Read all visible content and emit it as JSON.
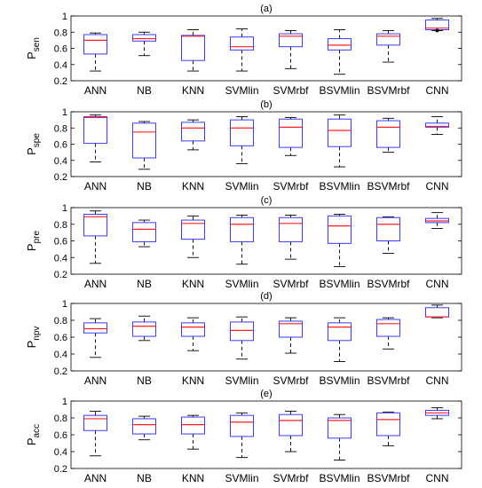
{
  "colors": {
    "box": "#3a3aff",
    "median": "#ff2020",
    "whisker": "#000000",
    "axis": "#000000",
    "outlier_fill": "#000000"
  },
  "chart_data": [
    {
      "type": "box",
      "title": "(a)",
      "ylabel_main": "P",
      "ylabel_sub": "sen",
      "ylim": [
        0.2,
        1.0
      ],
      "yticks": [
        "0.2",
        "0.4",
        "0.6",
        "0.8",
        "1"
      ],
      "categories": [
        "ANN",
        "NB",
        "KNN",
        "SVMlin",
        "SVMrbf",
        "BSVMlin",
        "BSVMrbf",
        "CNN"
      ],
      "boxes": [
        {
          "min": 0.32,
          "q1": 0.53,
          "median": 0.7,
          "q3": 0.77,
          "max": 0.79
        },
        {
          "min": 0.51,
          "q1": 0.69,
          "median": 0.72,
          "q3": 0.77,
          "max": 0.8
        },
        {
          "min": 0.32,
          "q1": 0.45,
          "median": 0.75,
          "q3": 0.76,
          "max": 0.83
        },
        {
          "min": 0.32,
          "q1": 0.58,
          "median": 0.62,
          "q3": 0.74,
          "max": 0.84
        },
        {
          "min": 0.35,
          "q1": 0.62,
          "median": 0.75,
          "q3": 0.78,
          "max": 0.82
        },
        {
          "min": 0.28,
          "q1": 0.58,
          "median": 0.64,
          "q3": 0.72,
          "max": 0.83
        },
        {
          "min": 0.43,
          "q1": 0.64,
          "median": 0.75,
          "q3": 0.78,
          "max": 0.82
        },
        {
          "min": 0.82,
          "q1": 0.83,
          "median": 0.85,
          "q3": 0.95,
          "max": 0.97,
          "outliers": [
            0.82
          ]
        }
      ]
    },
    {
      "type": "box",
      "title": "(b)",
      "ylabel_main": "P",
      "ylabel_sub": "spe",
      "ylim": [
        0.2,
        1.0
      ],
      "yticks": [
        "0.2",
        "0.4",
        "0.6",
        "0.8",
        "1"
      ],
      "categories": [
        "ANN",
        "NB",
        "KNN",
        "SVMlin",
        "SVMrbf",
        "BSVMlin",
        "BSVMrbf",
        "CNN"
      ],
      "boxes": [
        {
          "min": 0.38,
          "q1": 0.61,
          "median": 0.93,
          "q3": 0.94,
          "max": 0.96
        },
        {
          "min": 0.29,
          "q1": 0.43,
          "median": 0.75,
          "q3": 0.86,
          "max": 0.88
        },
        {
          "min": 0.53,
          "q1": 0.64,
          "median": 0.8,
          "q3": 0.87,
          "max": 0.9
        },
        {
          "min": 0.36,
          "q1": 0.58,
          "median": 0.8,
          "q3": 0.9,
          "max": 0.94
        },
        {
          "min": 0.46,
          "q1": 0.56,
          "median": 0.81,
          "q3": 0.91,
          "max": 0.93
        },
        {
          "min": 0.32,
          "q1": 0.57,
          "median": 0.77,
          "q3": 0.91,
          "max": 0.96
        },
        {
          "min": 0.5,
          "q1": 0.56,
          "median": 0.81,
          "q3": 0.89,
          "max": 0.92
        },
        {
          "min": 0.72,
          "q1": 0.81,
          "median": 0.82,
          "q3": 0.86,
          "max": 0.94
        }
      ]
    },
    {
      "type": "box",
      "title": "(c)",
      "ylabel_main": "P",
      "ylabel_sub": "pre",
      "ylim": [
        0.2,
        1.0
      ],
      "yticks": [
        "0.2",
        "0.4",
        "0.6",
        "0.8",
        "1"
      ],
      "categories": [
        "ANN",
        "NB",
        "KNN",
        "SVMlin",
        "SVMrbf",
        "BSVMlin",
        "BSVMrbf",
        "CNN"
      ],
      "boxes": [
        {
          "min": 0.33,
          "q1": 0.66,
          "median": 0.89,
          "q3": 0.92,
          "max": 0.96
        },
        {
          "min": 0.53,
          "q1": 0.59,
          "median": 0.74,
          "q3": 0.82,
          "max": 0.85
        },
        {
          "min": 0.4,
          "q1": 0.62,
          "median": 0.81,
          "q3": 0.85,
          "max": 0.9
        },
        {
          "min": 0.32,
          "q1": 0.59,
          "median": 0.8,
          "q3": 0.88,
          "max": 0.91
        },
        {
          "min": 0.38,
          "q1": 0.59,
          "median": 0.81,
          "q3": 0.88,
          "max": 0.91
        },
        {
          "min": 0.29,
          "q1": 0.57,
          "median": 0.78,
          "q3": 0.9,
          "max": 0.92
        },
        {
          "min": 0.45,
          "q1": 0.6,
          "median": 0.8,
          "q3": 0.88,
          "max": 0.89
        },
        {
          "min": 0.75,
          "q1": 0.82,
          "median": 0.84,
          "q3": 0.87,
          "max": 0.94
        }
      ]
    },
    {
      "type": "box",
      "title": "(d)",
      "ylabel_main": "P",
      "ylabel_sub": "npv",
      "ylim": [
        0.2,
        1.0
      ],
      "yticks": [
        "0.2",
        "0.4",
        "0.6",
        "0.8",
        "1"
      ],
      "categories": [
        "ANN",
        "NB",
        "KNN",
        "SVMlin",
        "SVMrbf",
        "BSVMlin",
        "BSVMrbf",
        "CNN"
      ],
      "boxes": [
        {
          "min": 0.36,
          "q1": 0.65,
          "median": 0.7,
          "q3": 0.77,
          "max": 0.82
        },
        {
          "min": 0.56,
          "q1": 0.61,
          "median": 0.73,
          "q3": 0.78,
          "max": 0.85
        },
        {
          "min": 0.44,
          "q1": 0.61,
          "median": 0.72,
          "q3": 0.77,
          "max": 0.83
        },
        {
          "min": 0.34,
          "q1": 0.56,
          "median": 0.68,
          "q3": 0.78,
          "max": 0.84
        },
        {
          "min": 0.41,
          "q1": 0.6,
          "median": 0.76,
          "q3": 0.79,
          "max": 0.83
        },
        {
          "min": 0.31,
          "q1": 0.56,
          "median": 0.72,
          "q3": 0.77,
          "max": 0.83
        },
        {
          "min": 0.46,
          "q1": 0.61,
          "median": 0.76,
          "q3": 0.81,
          "max": 0.83
        },
        {
          "min": 0.83,
          "q1": 0.84,
          "median": 0.84,
          "q3": 0.95,
          "max": 0.98
        }
      ]
    },
    {
      "type": "box",
      "title": "(e)",
      "ylabel_main": "P",
      "ylabel_sub": "acc",
      "ylim": [
        0.2,
        1.0
      ],
      "yticks": [
        "0.2",
        "0.4",
        "0.6",
        "0.8",
        "1"
      ],
      "categories": [
        "ANN",
        "NB",
        "KNN",
        "SVMlin",
        "SVMrbf",
        "BSVMlin",
        "BSVMrbf",
        "CNN"
      ],
      "boxes": [
        {
          "min": 0.35,
          "q1": 0.65,
          "median": 0.79,
          "q3": 0.83,
          "max": 0.88
        },
        {
          "min": 0.54,
          "q1": 0.61,
          "median": 0.72,
          "q3": 0.79,
          "max": 0.82
        },
        {
          "min": 0.43,
          "q1": 0.61,
          "median": 0.72,
          "q3": 0.81,
          "max": 0.83
        },
        {
          "min": 0.33,
          "q1": 0.58,
          "median": 0.75,
          "q3": 0.83,
          "max": 0.86
        },
        {
          "min": 0.4,
          "q1": 0.59,
          "median": 0.77,
          "q3": 0.84,
          "max": 0.88
        },
        {
          "min": 0.3,
          "q1": 0.56,
          "median": 0.77,
          "q3": 0.8,
          "max": 0.84
        },
        {
          "min": 0.47,
          "q1": 0.59,
          "median": 0.78,
          "q3": 0.86,
          "max": 0.87
        },
        {
          "min": 0.79,
          "q1": 0.83,
          "median": 0.86,
          "q3": 0.89,
          "max": 0.92
        }
      ]
    }
  ]
}
